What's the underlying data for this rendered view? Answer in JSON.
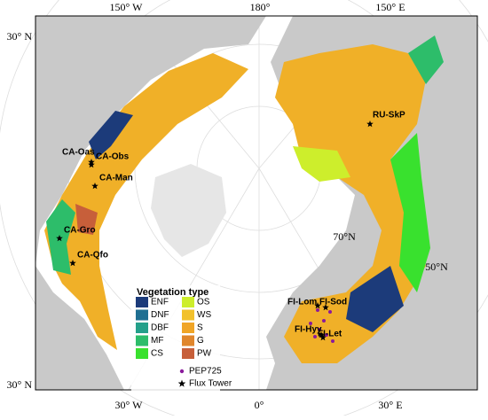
{
  "map": {
    "graticule_labels": [
      "150° W",
      "180°",
      "150° E",
      "30° N",
      "30° N",
      "30° W",
      "0°",
      "30° E",
      "70°N",
      "50°N"
    ],
    "sites": [
      {
        "label": "CA-Oas"
      },
      {
        "label": "CA-Obs"
      },
      {
        "label": "CA-Man"
      },
      {
        "label": "CA-Gro"
      },
      {
        "label": "CA-Qfo"
      },
      {
        "label": "RU-SkP"
      },
      {
        "label": "FI-Lom"
      },
      {
        "label": "FI-Sod"
      },
      {
        "label": "FI-Hyy"
      },
      {
        "label": "FI-Let"
      }
    ],
    "legend": {
      "title": "Vegetation type",
      "items": [
        {
          "label": "ENF",
          "color": "#1c3b7a"
        },
        {
          "label": "DNF",
          "color": "#1f6f92"
        },
        {
          "label": "DBF",
          "color": "#24a08a"
        },
        {
          "label": "MF",
          "color": "#2dbd6a"
        },
        {
          "label": "CS",
          "color": "#39e12e"
        },
        {
          "label": "OS",
          "color": "#cdee2c"
        },
        {
          "label": "WS",
          "color": "#f2c12c"
        },
        {
          "label": "S",
          "color": "#f0a526"
        },
        {
          "label": "G",
          "color": "#e0862c"
        },
        {
          "label": "PW",
          "color": "#c75f3a"
        }
      ],
      "markers": [
        {
          "label": "PEP725",
          "color": "#8a1a9c"
        },
        {
          "label": "Flux Tower",
          "color": "#000000"
        }
      ]
    }
  }
}
